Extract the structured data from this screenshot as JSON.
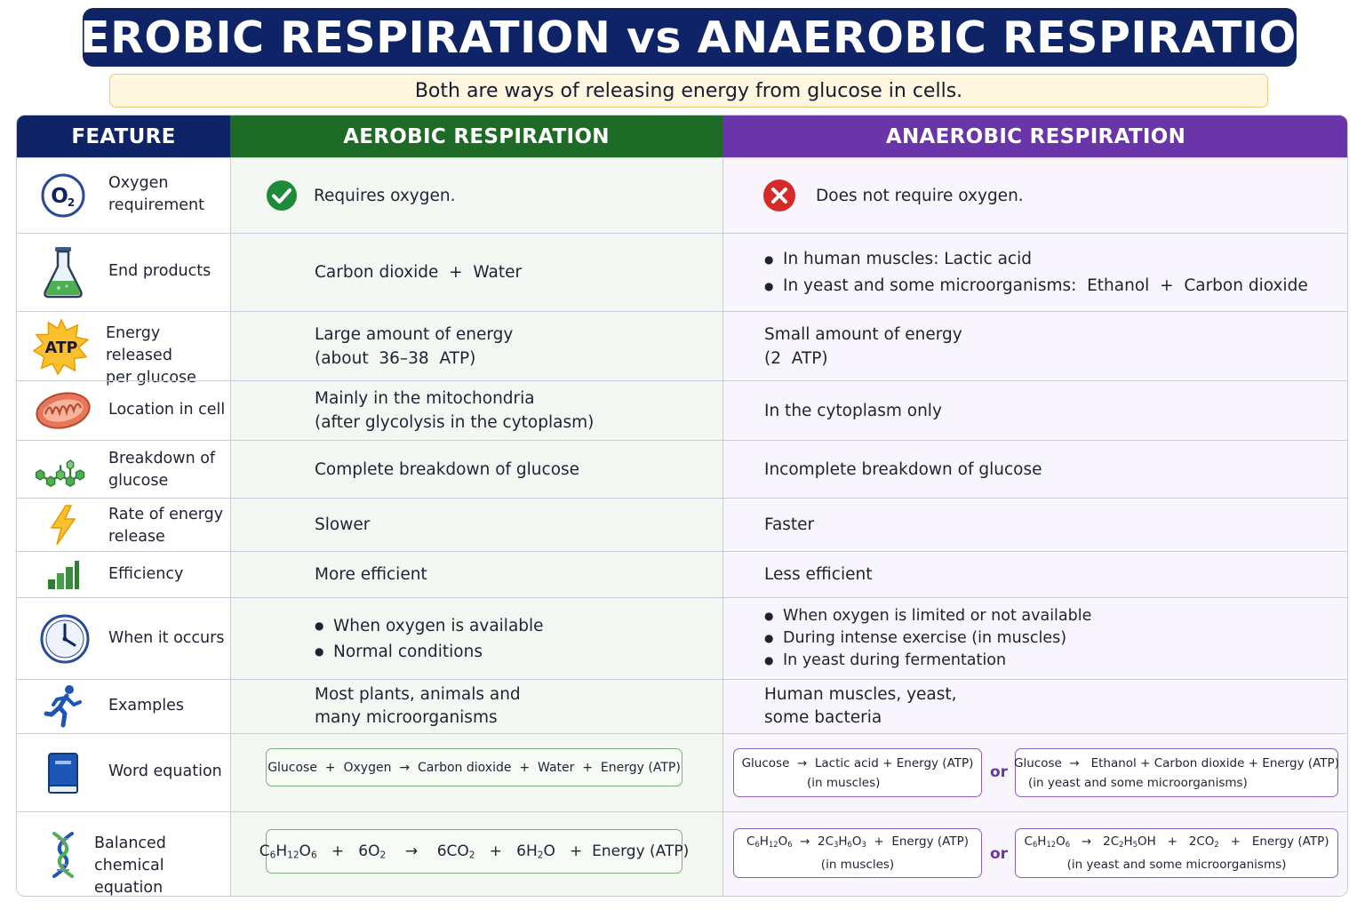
{
  "title": "AEROBIC RESPIRATION vs ANAEROBIC RESPIRATION",
  "subtitle": "Both are ways of releasing energy from glucose in cells.",
  "headers": {
    "feature": "FEATURE",
    "aerobic": "AEROBIC RESPIRATION",
    "anaerobic": "ANAEROBIC RESPIRATION"
  },
  "colors": {
    "navy": "#0e2466",
    "green": "#1d6b26",
    "purple": "#6a35a8"
  },
  "rows": {
    "oxygen": {
      "icon": "oxygen-icon",
      "feature_line1": "Oxygen",
      "feature_line2": "requirement",
      "aerobic": "Requires oxygen.",
      "aerobic_icon": "check-circle-icon",
      "anaerobic": "Does not require oxygen.",
      "anaerobic_icon": "cross-circle-icon"
    },
    "end_products": {
      "icon": "flask-icon",
      "feature": "End products",
      "aerobic": "Carbon dioxide  +  Water",
      "anaerobic": [
        "In human muscles: Lactic acid",
        "In yeast and some microorganisms:  Ethanol  +  Carbon dioxide"
      ]
    },
    "energy": {
      "icon": "atp-icon",
      "icon_text": "ATP",
      "feature_line1": "Energy released",
      "feature_line2": "per glucose",
      "aerobic_line1": "Large amount of energy",
      "aerobic_line2": "(about  36–38  ATP)",
      "anaerobic_line1": "Small amount of energy",
      "anaerobic_line2": "(2  ATP)"
    },
    "location": {
      "icon": "mitochondrion-icon",
      "feature": "Location in cell",
      "aerobic_line1": "Mainly in the mitochondria",
      "aerobic_line2": "(after glycolysis in the cytoplasm)",
      "anaerobic": "In the cytoplasm only"
    },
    "breakdown": {
      "icon": "molecule-icon",
      "feature_line1": "Breakdown of",
      "feature_line2": "glucose",
      "aerobic": "Complete breakdown of glucose",
      "anaerobic": "Incomplete breakdown of glucose"
    },
    "rate": {
      "icon": "lightning-icon",
      "feature_line1": "Rate of energy",
      "feature_line2": "release",
      "aerobic": "Slower",
      "anaerobic": "Faster"
    },
    "efficiency": {
      "icon": "bar-chart-icon",
      "feature": "Efficiency",
      "aerobic": "More efficient",
      "anaerobic": "Less efficient"
    },
    "when": {
      "icon": "clock-icon",
      "feature": "When it occurs",
      "aerobic": [
        "When oxygen is available",
        "Normal conditions"
      ],
      "anaerobic": [
        "When oxygen is limited or not available",
        "During intense exercise (in muscles)",
        "In yeast during fermentation"
      ]
    },
    "examples": {
      "icon": "runner-icon",
      "feature": "Examples",
      "aerobic_line1": "Most plants, animals and",
      "aerobic_line2": "many microorganisms",
      "anaerobic_line1": "Human muscles, yeast,",
      "anaerobic_line2": "some bacteria"
    },
    "word_equation": {
      "icon": "book-icon",
      "feature": "Word equation",
      "aerobic": "Glucose  +  Oxygen  →  Carbon dioxide  +  Water  +  Energy (ATP)",
      "anaerobic_muscle": "Glucose  →  Lactic acid + Energy (ATP)",
      "anaerobic_muscle_note": "(in muscles)",
      "or": "or",
      "anaerobic_yeast": "Glucose  →   Ethanol + Carbon dioxide + Energy (ATP)",
      "anaerobic_yeast_note": "(in yeast and some microorganisms)"
    },
    "chemical_equation": {
      "icon": "dna-icon",
      "feature_line1": "Balanced chemical",
      "feature_line2": "equation",
      "energy_text": "Energy (ATP)",
      "anaerobic_muscle_note": "(in muscles)",
      "or": "or",
      "anaerobic_yeast_note": "(in yeast and some microorganisms)"
    }
  }
}
